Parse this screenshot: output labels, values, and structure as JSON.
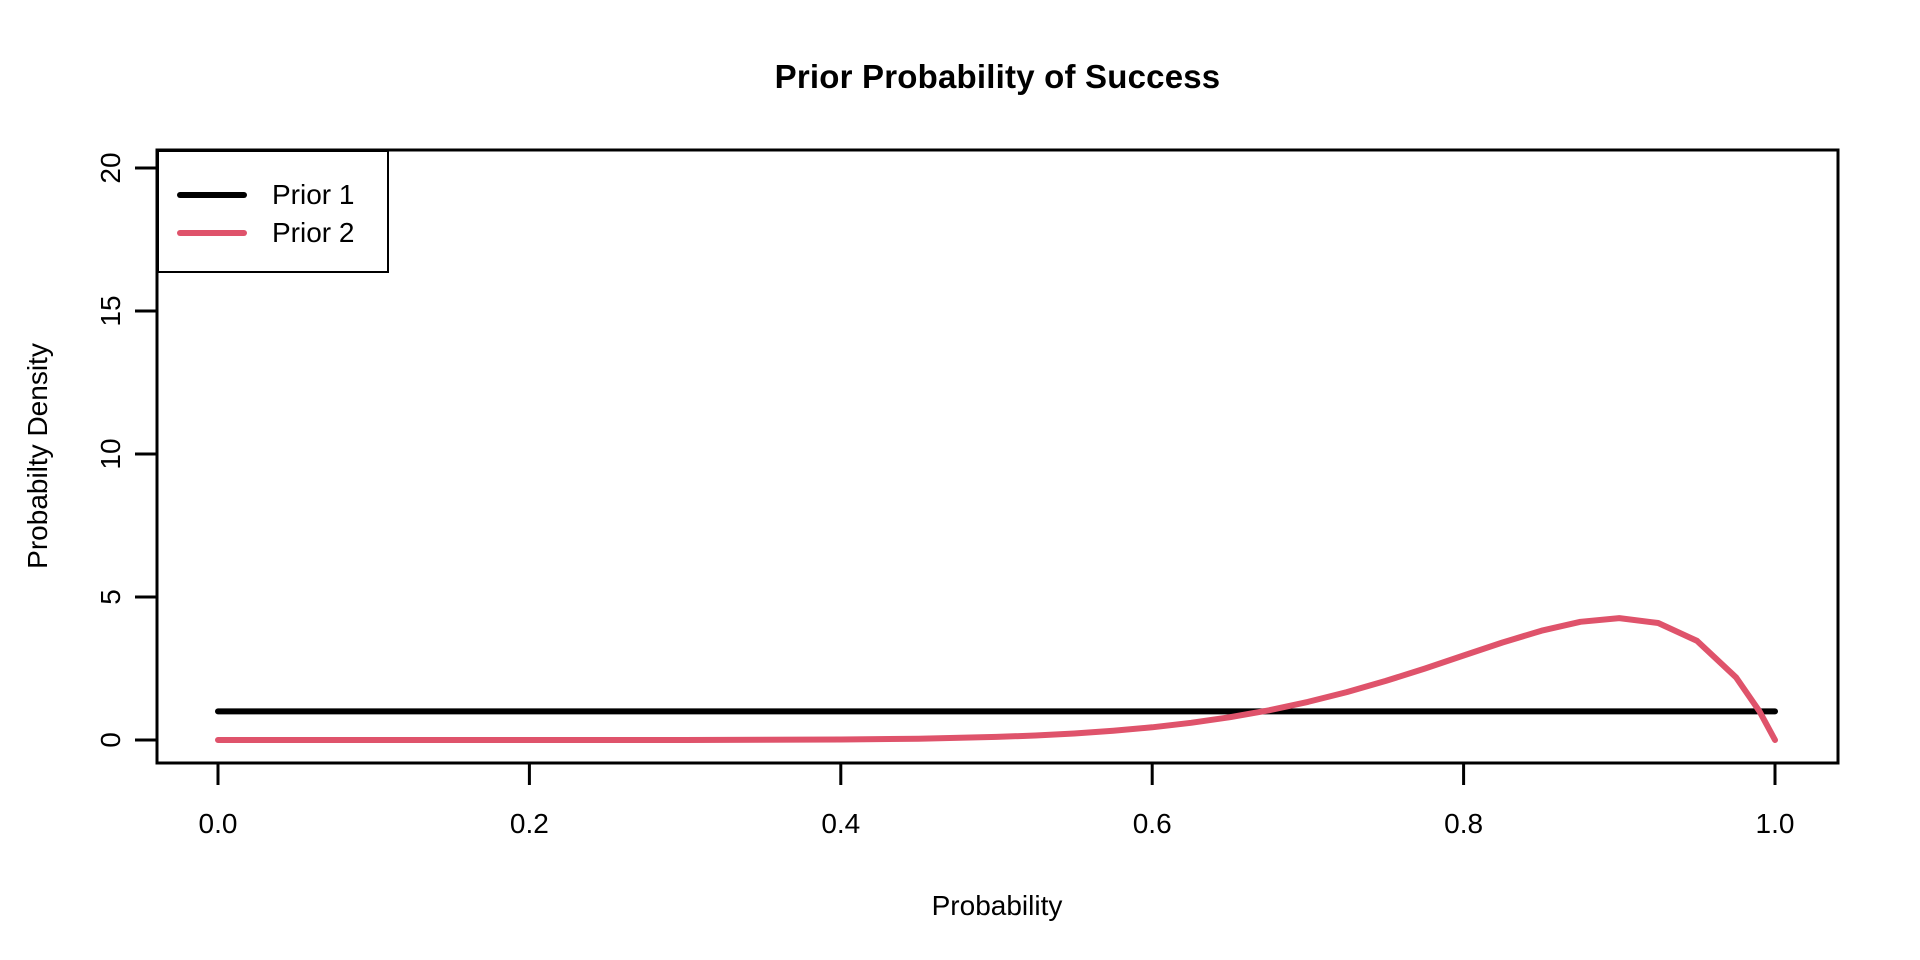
{
  "figure": {
    "background_color": "#FFFFFF",
    "foreground_color": "#000000"
  },
  "chart_data": {
    "type": "line",
    "title": "Prior Probability of Success",
    "xlabel": "Probability",
    "ylabel": "Probabilty Density",
    "xlim": [
      -0.04,
      1.04
    ],
    "ylim": [
      -0.8,
      20.8
    ],
    "x_ticks": [
      0.0,
      0.2,
      0.4,
      0.6,
      0.8,
      1.0
    ],
    "x_tick_labels": [
      "0.0",
      "0.2",
      "0.4",
      "0.6",
      "0.8",
      "1.0"
    ],
    "y_ticks": [
      0,
      5,
      10,
      15,
      20
    ],
    "y_tick_labels": [
      "0",
      "5",
      "10",
      "15",
      "20"
    ],
    "grid": false,
    "legend_position": "topleft",
    "x": [
      0,
      0.05,
      0.1,
      0.15,
      0.2,
      0.25,
      0.3,
      0.35,
      0.4,
      0.45,
      0.5,
      0.525,
      0.55,
      0.575,
      0.6,
      0.625,
      0.65,
      0.675,
      0.7,
      0.725,
      0.75,
      0.775,
      0.8,
      0.825,
      0.85,
      0.875,
      0.9,
      0.925,
      0.95,
      0.975,
      0.99,
      1
    ],
    "series": [
      {
        "name": "Prior 1",
        "color": "#000000",
        "line_width": 6,
        "values": [
          1,
          1,
          1,
          1,
          1,
          1,
          1,
          1,
          1,
          1,
          1,
          1,
          1,
          1,
          1,
          1,
          1,
          1,
          1,
          1,
          1,
          1,
          1,
          1,
          1,
          1,
          1,
          1,
          1,
          1,
          1,
          1
        ]
      },
      {
        "name": "Prior 2",
        "color": "#DF536B",
        "line_width": 6,
        "values": [
          0,
          0,
          0,
          0,
          0,
          0.0003,
          0.0015,
          0.0056,
          0.0173,
          0.0458,
          0.1074,
          0.1583,
          0.2279,
          0.3212,
          0.4434,
          0.6003,
          0.7974,
          1.0399,
          1.3317,
          1.674,
          2.0648,
          2.496,
          2.9528,
          3.4081,
          3.8217,
          4.1341,
          4.2616,
          4.0904,
          3.4664,
          2.1897,
          1.0053,
          0
        ]
      }
    ]
  }
}
